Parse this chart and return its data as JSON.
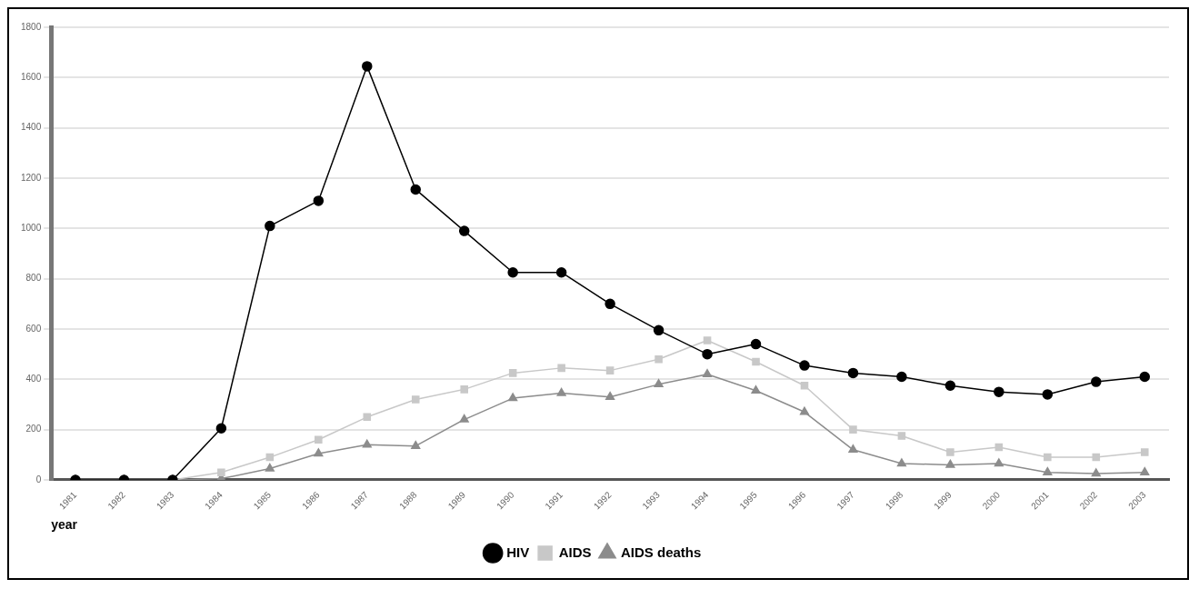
{
  "chart_data": {
    "type": "line",
    "xlabel": "year",
    "categories": [
      "1981",
      "1982",
      "1983",
      "1984",
      "1985",
      "1986",
      "1987",
      "1988",
      "1989",
      "1990",
      "1991",
      "1992",
      "1993",
      "1994",
      "1995",
      "1996",
      "1997",
      "1998",
      "1999",
      "2000",
      "2001",
      "2002",
      "2003"
    ],
    "series": [
      {
        "name": "HIV",
        "color": "#000000",
        "marker": "circle",
        "values": [
          0,
          0,
          0,
          205,
          1010,
          1110,
          1645,
          1155,
          990,
          825,
          825,
          700,
          595,
          500,
          540,
          455,
          425,
          410,
          375,
          350,
          340,
          390,
          410
        ]
      },
      {
        "name": "AIDS",
        "color": "#c8c8c8",
        "marker": "square",
        "values": [
          0,
          0,
          0,
          30,
          90,
          160,
          250,
          320,
          360,
          425,
          445,
          435,
          480,
          555,
          470,
          375,
          200,
          175,
          110,
          130,
          90,
          90,
          110
        ]
      },
      {
        "name": "AIDS deaths",
        "color": "#8c8c8c",
        "marker": "triangle",
        "values": [
          0,
          0,
          0,
          5,
          45,
          105,
          140,
          135,
          240,
          325,
          345,
          330,
          380,
          420,
          355,
          270,
          120,
          65,
          60,
          65,
          30,
          25,
          30
        ]
      }
    ],
    "ylim": [
      0,
      1800
    ],
    "yticks": [
      0,
      200,
      400,
      600,
      800,
      1000,
      1200,
      1400,
      1600,
      1800
    ],
    "grid": "y",
    "legend": "bottom",
    "line_style": "solid"
  }
}
